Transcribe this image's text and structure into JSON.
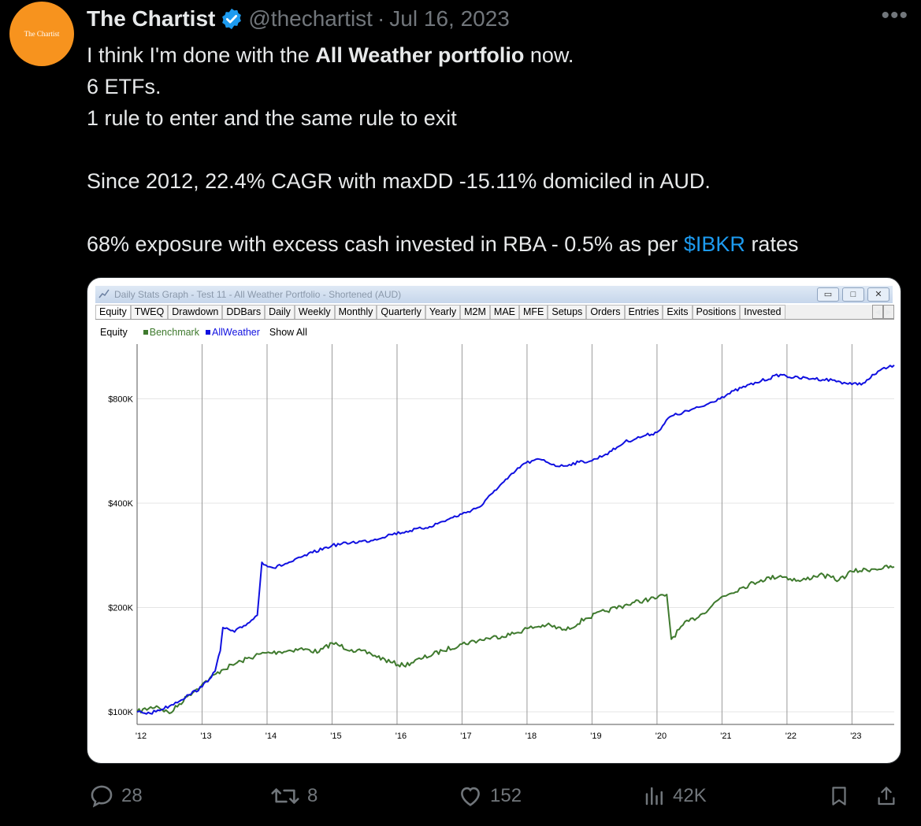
{
  "author": {
    "avatar_text": "The Chartist",
    "name": "The Chartist",
    "handle": "@thechartist",
    "separator": "·",
    "date": "Jul 16, 2023"
  },
  "tweet": {
    "line1_pre": "I think I'm done with the ",
    "line1_bold": "All Weather portfolio",
    "line1_post": " now.",
    "line2": "6 ETFs.",
    "line3": "1 rule to enter and the same rule to exit",
    "line4": "Since 2012, 22.4% CAGR with maxDD -15.11% domiciled in AUD.",
    "line5_pre": "68% exposure with excess cash invested in RBA - 0.5% as per ",
    "line5_link": "$IBKR",
    "line5_post": " rates"
  },
  "window": {
    "title": "Daily Stats Graph - Test 11 - All Weather Portfolio - Shortened (AUD)",
    "tabs": [
      "Equity",
      "TWEQ",
      "Drawdown",
      "DDBars",
      "Daily",
      "Weekly",
      "Monthly",
      "Quarterly",
      "Yearly",
      "M2M",
      "MAE",
      "MFE",
      "Setups",
      "Orders",
      "Entries",
      "Exits",
      "Positions",
      "Invested"
    ],
    "legend": {
      "label": "Equity",
      "benchmark": "Benchmark",
      "allweather": "AllWeather",
      "show_all": "Show All"
    }
  },
  "colors": {
    "benchmark": "#3f7a2e",
    "allweather": "#1010e0",
    "accent": "#1d9bf0"
  },
  "chart_data": {
    "type": "line",
    "title": "",
    "y_scale": "log",
    "y_ticks": [
      100000,
      200000,
      400000,
      800000
    ],
    "y_tick_labels": [
      "$100K",
      "$200K",
      "$400K",
      "$800K"
    ],
    "x_tick_labels": [
      "'12",
      "'13",
      "'14",
      "'15",
      "'16",
      "'17",
      "'18",
      "'19",
      "'20",
      "'21",
      "'22",
      "'23"
    ],
    "x_ticks": [
      2012,
      2013,
      2014,
      2015,
      2016,
      2017,
      2018,
      2019,
      2020,
      2021,
      2022,
      2023
    ],
    "xlim": [
      2012,
      2023.65
    ],
    "ylim": [
      92000,
      1150000
    ],
    "grid": "vertical",
    "series": [
      {
        "name": "Benchmark",
        "x": [
          2012.0,
          2012.3,
          2012.5,
          2012.8,
          2013.0,
          2013.3,
          2013.6,
          2013.9,
          2014.2,
          2014.5,
          2014.8,
          2015.0,
          2015.3,
          2015.6,
          2015.9,
          2016.1,
          2016.4,
          2016.7,
          2017.0,
          2017.4,
          2017.8,
          2018.0,
          2018.3,
          2018.6,
          2018.9,
          2019.2,
          2019.5,
          2019.8,
          2020.0,
          2020.15,
          2020.22,
          2020.4,
          2020.7,
          2021.0,
          2021.3,
          2021.6,
          2021.9,
          2022.2,
          2022.5,
          2022.8,
          2023.0,
          2023.3,
          2023.65
        ],
        "values": [
          100000,
          104000,
          99000,
          112000,
          120000,
          132000,
          140000,
          147000,
          149000,
          152000,
          149000,
          158000,
          151000,
          147000,
          139000,
          136000,
          143000,
          150000,
          157000,
          163000,
          168000,
          174000,
          178000,
          172000,
          186000,
          195000,
          203000,
          210000,
          213000,
          218000,
          162000,
          178000,
          192000,
          215000,
          228000,
          240000,
          247000,
          238000,
          249000,
          240000,
          254000,
          258000,
          262000
        ]
      },
      {
        "name": "AllWeather",
        "x": [
          2012.0,
          2012.2,
          2012.5,
          2012.8,
          2013.0,
          2013.2,
          2013.28,
          2013.32,
          2013.5,
          2013.7,
          2013.85,
          2013.92,
          2014.1,
          2014.4,
          2014.7,
          2015.0,
          2015.3,
          2015.6,
          2015.9,
          2016.2,
          2016.5,
          2016.8,
          2017.0,
          2017.3,
          2017.5,
          2017.7,
          2017.95,
          2018.2,
          2018.5,
          2018.8,
          2019.0,
          2019.3,
          2019.5,
          2019.8,
          2020.0,
          2020.2,
          2020.4,
          2020.7,
          2021.0,
          2021.3,
          2021.6,
          2021.9,
          2022.1,
          2022.4,
          2022.7,
          2023.0,
          2023.2,
          2023.4,
          2023.65
        ],
        "values": [
          100000,
          99000,
          104000,
          112000,
          118000,
          131000,
          150000,
          175000,
          170000,
          180000,
          190000,
          270000,
          260000,
          272000,
          288000,
          302000,
          308000,
          312000,
          325000,
          333000,
          342000,
          360000,
          372000,
          393000,
          435000,
          470000,
          520000,
          535000,
          510000,
          525000,
          530000,
          565000,
          600000,
          625000,
          640000,
          710000,
          730000,
          760000,
          810000,
          860000,
          900000,
          940000,
          920000,
          915000,
          905000,
          880000,
          890000,
          960000,
          1000000
        ]
      }
    ]
  },
  "actions": {
    "replies": "28",
    "reposts": "8",
    "likes": "152",
    "views": "42K"
  }
}
